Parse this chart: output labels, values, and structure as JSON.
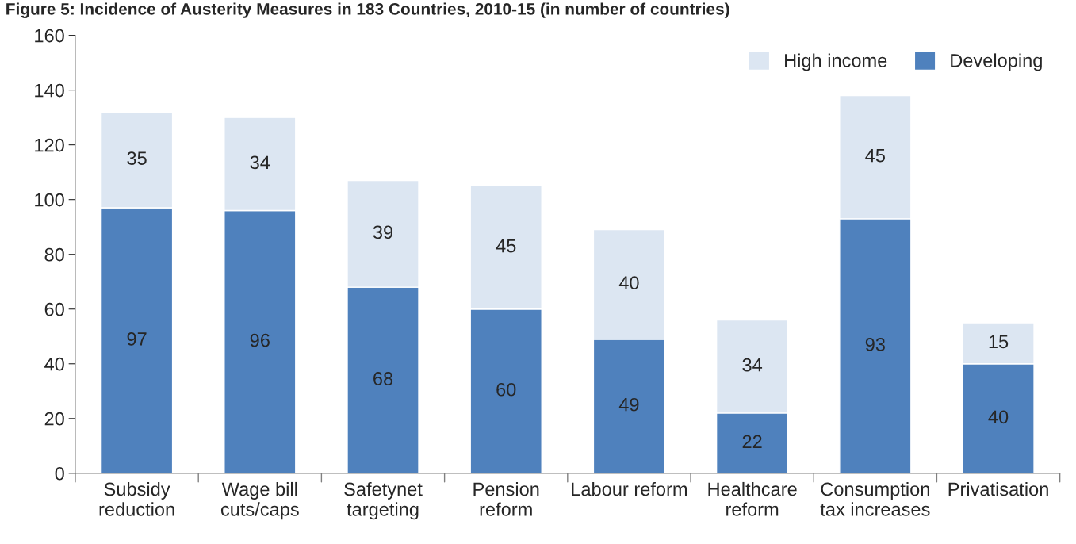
{
  "chart_data": {
    "type": "bar",
    "title": "Figure 5: Incidence of Austerity Measures in 183 Countries, 2010-15 (in number of countries)",
    "categories": [
      "Subsidy\nreduction",
      "Wage bill\ncuts/caps",
      "Safetynet\ntargeting",
      "Pension\nreform",
      "Labour reform",
      "Healthcare\nreform",
      "Consumption\ntax increases",
      "Privatisation"
    ],
    "series": [
      {
        "name": "Developing",
        "color": "#4f81bd",
        "values": [
          97,
          96,
          68,
          60,
          49,
          22,
          93,
          40
        ]
      },
      {
        "name": "High income",
        "color": "#dce6f2",
        "values": [
          35,
          34,
          39,
          45,
          40,
          34,
          45,
          15
        ]
      }
    ],
    "stacked": true,
    "data_labels": true,
    "ylim": [
      0,
      160
    ],
    "yticks": [
      0,
      20,
      40,
      60,
      80,
      100,
      120,
      140,
      160
    ],
    "grid": false,
    "legend": "top right"
  }
}
